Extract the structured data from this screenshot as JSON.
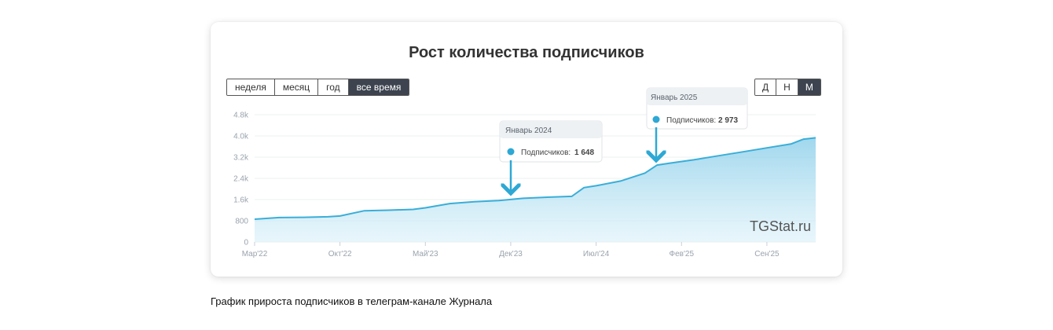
{
  "chart_data": {
    "type": "area",
    "title": "Рост количества подписчиков",
    "x_tick_labels": [
      "Мар'22",
      "Окт'22",
      "Май'23",
      "Дек'23",
      "Июл'24",
      "Фев'25",
      "Сен'25"
    ],
    "y_tick_labels": [
      "0",
      "800",
      "1.6k",
      "2.4k",
      "3.2k",
      "4.0k",
      "4.8k"
    ],
    "ylim": [
      0,
      4800
    ],
    "xlim": [
      "2022-03",
      "2026-01"
    ],
    "grid": "horizontal",
    "color": "#3aaed8",
    "series": [
      {
        "x": [
          "2022-03",
          "2022-05",
          "2022-07",
          "2022-09",
          "2022-10",
          "2022-12",
          "2023-02",
          "2023-04",
          "2023-05",
          "2023-07",
          "2023-09",
          "2023-11",
          "2024-01",
          "2024-03",
          "2024-05",
          "2024-06",
          "2024-07",
          "2024-09",
          "2024-11",
          "2024-12",
          "2025-01",
          "2025-03",
          "2025-05",
          "2025-07",
          "2025-09",
          "2025-11",
          "2025-12",
          "2026-01"
        ],
        "y": [
          860,
          920,
          930,
          950,
          980,
          1180,
          1200,
          1230,
          1290,
          1450,
          1520,
          1560,
          1648,
          1690,
          1720,
          2050,
          2120,
          2300,
          2600,
          2900,
          2973,
          3100,
          3250,
          3400,
          3550,
          3700,
          3880,
          3930
        ]
      }
    ]
  },
  "range_buttons": [
    "неделя",
    "месяц",
    "год",
    "все время"
  ],
  "range_active": "все время",
  "granularity_buttons": [
    "Д",
    "Н",
    "М"
  ],
  "granularity_active": "М",
  "tooltips": [
    {
      "title": "Январь 2024",
      "label": "Подписчиков:",
      "value": "1 648",
      "x": "2024-01",
      "y": 1648
    },
    {
      "title": "Январь 2025",
      "label": "Подписчиков:",
      "value": "2 973",
      "x": "2025-01",
      "y": 2973
    }
  ],
  "watermark": "TGStat.ru",
  "caption": "График прироста подписчиков в телеграм-канале Журнала"
}
